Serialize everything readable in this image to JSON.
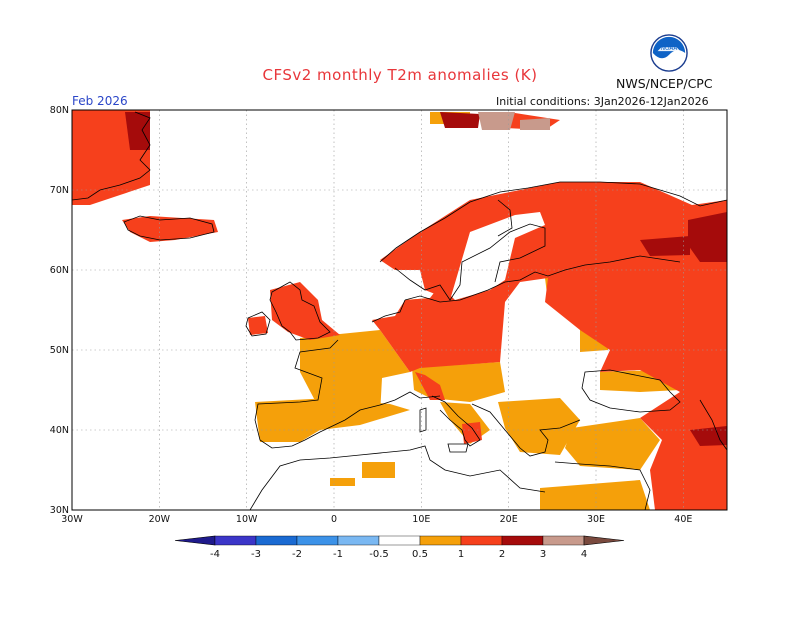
{
  "header": {
    "title": "CFSv2 monthly T2m anomalies (K)",
    "period": "Feb 2026",
    "agency": "NWS/NCEP/CPC",
    "initial_conditions": "Initial conditions: 3Jan2026-12Jan2026",
    "logo_icon": "noaa-logo-icon"
  },
  "map": {
    "lon_range": [
      -30,
      45
    ],
    "lat_range": [
      30,
      80
    ],
    "lat_ticks": [
      "30N",
      "40N",
      "50N",
      "60N",
      "70N",
      "80N"
    ],
    "lon_ticks": [
      "30W",
      "20W",
      "10W",
      "0",
      "10E",
      "20E",
      "30E",
      "40E"
    ],
    "grid": true,
    "colors": {
      "0.5-1": "#f5a00a",
      "1-2": "#f6401c",
      "2-3": "#a50b0b",
      "3-4": "#c89a8c"
    }
  },
  "colorbar": {
    "labels": [
      "-4",
      "-3",
      "-2",
      "-1",
      "-0.5",
      "0.5",
      "1",
      "2",
      "3",
      "4"
    ],
    "colors": [
      "#1f1a8c",
      "#3b35c8",
      "#1a6ad2",
      "#3c92e8",
      "#7ab8f2",
      "#ffffff",
      "#f5a00a",
      "#f6401c",
      "#a50b0b",
      "#c89a8c",
      "#7a4a3e"
    ]
  }
}
